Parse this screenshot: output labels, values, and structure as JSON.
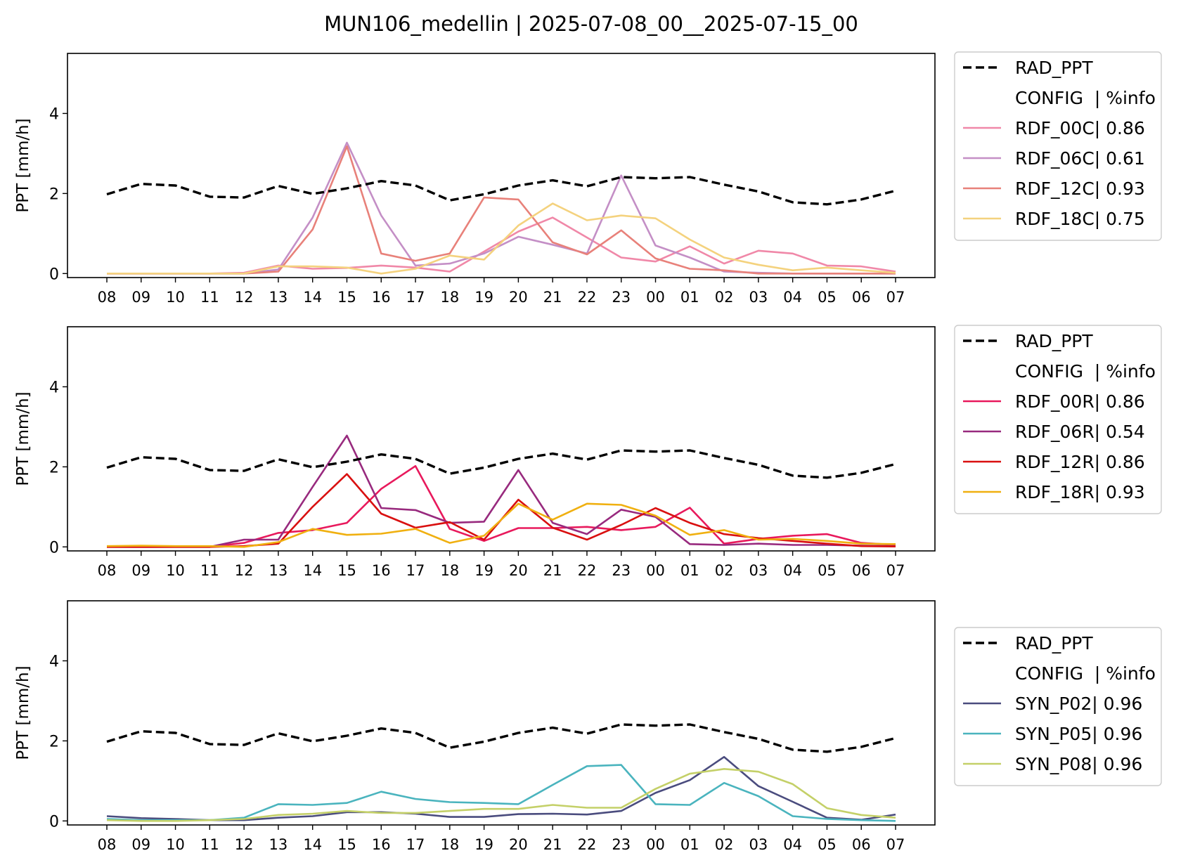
{
  "title": "MUN106_medellin | 2025-07-08_00__2025-07-15_00",
  "chart_data": [
    {
      "type": "line",
      "xlabel": "",
      "ylabel": "PPT [mm/h]",
      "ylim": [
        -0.1,
        5.5
      ],
      "yticks": [
        0,
        2,
        4
      ],
      "x": [
        "08",
        "09",
        "10",
        "11",
        "12",
        "13",
        "14",
        "15",
        "16",
        "17",
        "18",
        "19",
        "20",
        "21",
        "22",
        "23",
        "00",
        "01",
        "02",
        "03",
        "04",
        "05",
        "06",
        "07"
      ],
      "legend": {
        "placement": "outside-right-top",
        "header": "CONFIG  | %info"
      },
      "series": [
        {
          "name": "RAD_PPT",
          "color": "#000000",
          "dashed": true,
          "values": [
            1.98,
            2.24,
            2.2,
            1.92,
            1.9,
            2.19,
            1.99,
            2.13,
            2.31,
            2.2,
            1.83,
            1.98,
            2.2,
            2.33,
            2.18,
            2.41,
            2.38,
            2.41,
            2.22,
            2.05,
            1.78,
            1.73,
            1.85,
            2.07
          ]
        },
        {
          "name": "RDF_00C| 0.86",
          "color": "#f088a8",
          "dashed": false,
          "values": [
            0,
            0,
            0,
            0,
            0.02,
            0.2,
            0.12,
            0.14,
            0.2,
            0.15,
            0.05,
            0.55,
            1.05,
            1.4,
            0.9,
            0.4,
            0.3,
            0.68,
            0.25,
            0.57,
            0.5,
            0.2,
            0.18,
            0.05
          ]
        },
        {
          "name": "RDF_06C| 0.61",
          "color": "#c48fc6",
          "dashed": false,
          "values": [
            0,
            0,
            0,
            0,
            0,
            0.1,
            1.4,
            3.27,
            1.45,
            0.2,
            0.25,
            0.5,
            0.92,
            0.72,
            0.5,
            2.45,
            0.7,
            0.4,
            0.05,
            0.02,
            0,
            0,
            0,
            0
          ]
        },
        {
          "name": "RDF_12C| 0.93",
          "color": "#e8817a",
          "dashed": false,
          "values": [
            0,
            0,
            0,
            0,
            0,
            0.05,
            1.1,
            3.18,
            0.5,
            0.32,
            0.5,
            1.9,
            1.85,
            0.78,
            0.48,
            1.08,
            0.38,
            0.12,
            0.08,
            0,
            0,
            0,
            0,
            0
          ]
        },
        {
          "name": "RDF_18C| 0.75",
          "color": "#f4d27e",
          "dashed": false,
          "values": [
            0,
            0,
            0,
            0,
            0,
            0.18,
            0.18,
            0.15,
            0,
            0.12,
            0.45,
            0.35,
            1.2,
            1.75,
            1.33,
            1.45,
            1.38,
            0.85,
            0.4,
            0.22,
            0.08,
            0.15,
            0.08,
            0.02
          ]
        }
      ]
    },
    {
      "type": "line",
      "xlabel": "",
      "ylabel": "PPT [mm/h]",
      "ylim": [
        -0.1,
        5.5
      ],
      "yticks": [
        0,
        2,
        4
      ],
      "x": [
        "08",
        "09",
        "10",
        "11",
        "12",
        "13",
        "14",
        "15",
        "16",
        "17",
        "18",
        "19",
        "20",
        "21",
        "22",
        "23",
        "00",
        "01",
        "02",
        "03",
        "04",
        "05",
        "06",
        "07"
      ],
      "legend": {
        "placement": "outside-right-top",
        "header": "CONFIG  | %info"
      },
      "series": [
        {
          "name": "RAD_PPT",
          "color": "#000000",
          "dashed": true,
          "values": [
            1.98,
            2.24,
            2.2,
            1.92,
            1.9,
            2.19,
            1.99,
            2.13,
            2.31,
            2.2,
            1.83,
            1.98,
            2.2,
            2.33,
            2.18,
            2.41,
            2.38,
            2.41,
            2.22,
            2.05,
            1.78,
            1.73,
            1.85,
            2.07
          ]
        },
        {
          "name": "RDF_00R| 0.86",
          "color": "#e8195c",
          "dashed": false,
          "values": [
            0,
            0,
            0,
            0,
            0.1,
            0.35,
            0.42,
            0.6,
            1.45,
            2.02,
            0.45,
            0.15,
            0.47,
            0.47,
            0.5,
            0.42,
            0.5,
            0.98,
            0.08,
            0.2,
            0.28,
            0.32,
            0.1,
            0.05
          ]
        },
        {
          "name": "RDF_06R| 0.54",
          "color": "#982a7e",
          "dashed": false,
          "values": [
            0,
            0,
            0,
            0,
            0.18,
            0.18,
            1.5,
            2.78,
            0.97,
            0.92,
            0.6,
            0.63,
            1.92,
            0.6,
            0.32,
            0.93,
            0.75,
            0.07,
            0.05,
            0.08,
            0.05,
            0.05,
            0.03,
            0.02
          ]
        },
        {
          "name": "RDF_12R| 0.86",
          "color": "#d91010",
          "dashed": false,
          "values": [
            0,
            0,
            0,
            0,
            0.02,
            0.08,
            1,
            1.82,
            0.83,
            0.48,
            0.62,
            0.18,
            1.18,
            0.48,
            0.18,
            0.55,
            0.97,
            0.6,
            0.32,
            0.22,
            0.15,
            0.08,
            0.02,
            0.01
          ]
        },
        {
          "name": "RDF_18R| 0.93",
          "color": "#f0b010",
          "dashed": false,
          "values": [
            0.02,
            0.03,
            0.02,
            0.02,
            0,
            0.12,
            0.45,
            0.3,
            0.33,
            0.45,
            0.1,
            0.28,
            1.08,
            0.68,
            1.08,
            1.05,
            0.78,
            0.3,
            0.42,
            0.18,
            0.2,
            0.15,
            0.08,
            0.07
          ]
        }
      ]
    },
    {
      "type": "line",
      "xlabel": "",
      "ylabel": "PPT [mm/h]",
      "ylim": [
        -0.1,
        5.5
      ],
      "yticks": [
        0,
        2,
        4
      ],
      "x": [
        "08",
        "09",
        "10",
        "11",
        "12",
        "13",
        "14",
        "15",
        "16",
        "17",
        "18",
        "19",
        "20",
        "21",
        "22",
        "23",
        "00",
        "01",
        "02",
        "03",
        "04",
        "05",
        "06",
        "07"
      ],
      "legend": {
        "placement": "outside-right-center",
        "header": "CONFIG  | %info"
      },
      "series": [
        {
          "name": "RAD_PPT",
          "color": "#000000",
          "dashed": true,
          "values": [
            1.98,
            2.24,
            2.2,
            1.92,
            1.9,
            2.19,
            1.99,
            2.13,
            2.31,
            2.2,
            1.83,
            1.98,
            2.2,
            2.33,
            2.18,
            2.41,
            2.38,
            2.41,
            2.22,
            2.05,
            1.78,
            1.73,
            1.85,
            2.07
          ]
        },
        {
          "name": "SYN_P02| 0.96",
          "color": "#4a4c7e",
          "dashed": false,
          "values": [
            0.12,
            0.07,
            0.05,
            0.02,
            0.02,
            0.08,
            0.12,
            0.22,
            0.22,
            0.18,
            0.1,
            0.1,
            0.17,
            0.18,
            0.16,
            0.25,
            0.7,
            1.02,
            1.6,
            0.87,
            0.48,
            0.08,
            0.03,
            0.16
          ]
        },
        {
          "name": "SYN_P05| 0.96",
          "color": "#4ab4be",
          "dashed": false,
          "values": [
            0.05,
            0.02,
            0.02,
            0.02,
            0.08,
            0.42,
            0.4,
            0.45,
            0.73,
            0.55,
            0.47,
            0.45,
            0.42,
            0.9,
            1.37,
            1.4,
            0.42,
            0.4,
            0.95,
            0.62,
            0.12,
            0.05,
            0.02,
            0
          ]
        },
        {
          "name": "SYN_P08| 0.96",
          "color": "#c4d068",
          "dashed": false,
          "values": [
            0.02,
            0,
            0,
            0.02,
            0.05,
            0.15,
            0.18,
            0.25,
            0.2,
            0.2,
            0.25,
            0.3,
            0.3,
            0.4,
            0.33,
            0.33,
            0.8,
            1.18,
            1.3,
            1.23,
            0.92,
            0.32,
            0.15,
            0.08
          ]
        }
      ]
    }
  ]
}
